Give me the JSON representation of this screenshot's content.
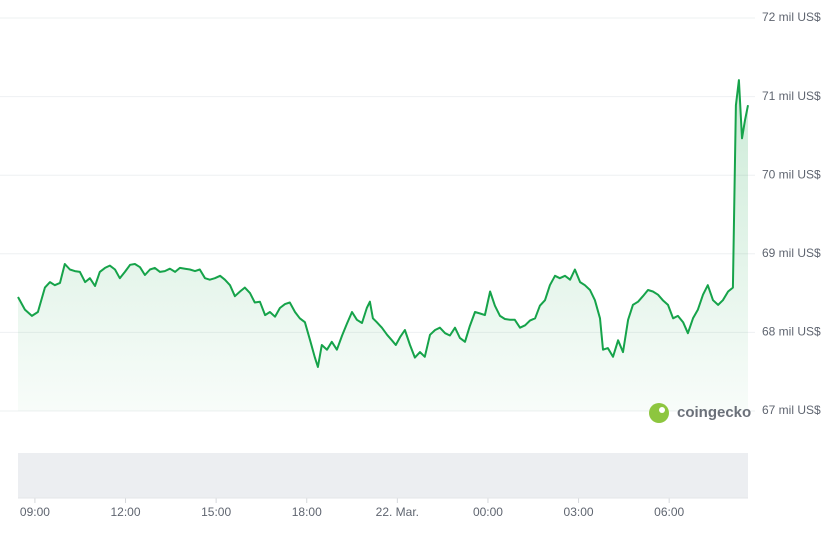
{
  "chart_data": {
    "type": "line",
    "color": "#16a34a",
    "grid": true,
    "watermark": "coingecko",
    "xlim": [
      -0.56,
      23.61
    ],
    "xticks": [
      {
        "value": 0,
        "label": "09:00"
      },
      {
        "value": 3,
        "label": "12:00"
      },
      {
        "value": 6,
        "label": "15:00"
      },
      {
        "value": 9,
        "label": "18:00"
      },
      {
        "value": 12,
        "label": "22. Mar."
      },
      {
        "value": 15,
        "label": "00:00"
      },
      {
        "value": 18,
        "label": "03:00"
      },
      {
        "value": 21,
        "label": "06:00"
      }
    ],
    "ylim": [
      67000,
      72000
    ],
    "yticks": [
      {
        "value": 67000,
        "label": "67 mil US$"
      },
      {
        "value": 68000,
        "label": "68 mil US$"
      },
      {
        "value": 69000,
        "label": "69 mil US$"
      },
      {
        "value": 70000,
        "label": "70 mil US$"
      },
      {
        "value": 71000,
        "label": "71 mil US$"
      },
      {
        "value": 72000,
        "label": "72 mil US$"
      }
    ],
    "x": [
      -0.56,
      -0.33,
      -0.1,
      0.1,
      0.33,
      0.5,
      0.66,
      0.83,
      0.99,
      1.16,
      1.32,
      1.49,
      1.66,
      1.82,
      1.99,
      2.15,
      2.32,
      2.48,
      2.65,
      2.81,
      2.98,
      3.15,
      3.31,
      3.48,
      3.64,
      3.81,
      3.97,
      4.14,
      4.3,
      4.47,
      4.64,
      4.8,
      4.97,
      5.13,
      5.3,
      5.46,
      5.63,
      5.79,
      5.96,
      6.13,
      6.29,
      6.46,
      6.62,
      6.79,
      6.95,
      7.12,
      7.28,
      7.45,
      7.62,
      7.78,
      7.95,
      8.11,
      8.28,
      8.44,
      8.61,
      8.77,
      8.94,
      9.11,
      9.27,
      9.37,
      9.5,
      9.67,
      9.83,
      10.0,
      10.17,
      10.33,
      10.5,
      10.66,
      10.83,
      10.99,
      11.09,
      11.19,
      11.32,
      11.49,
      11.66,
      11.82,
      11.95,
      12.09,
      12.25,
      12.42,
      12.58,
      12.75,
      12.91,
      13.08,
      13.25,
      13.41,
      13.58,
      13.74,
      13.91,
      14.07,
      14.24,
      14.4,
      14.57,
      14.74,
      14.9,
      15.07,
      15.23,
      15.4,
      15.56,
      15.73,
      15.89,
      16.06,
      16.23,
      16.39,
      16.56,
      16.72,
      16.89,
      17.05,
      17.22,
      17.38,
      17.55,
      17.72,
      17.88,
      18.05,
      18.21,
      18.38,
      18.54,
      18.71,
      18.81,
      18.97,
      19.14,
      19.31,
      19.47,
      19.64,
      19.8,
      19.97,
      20.13,
      20.3,
      20.46,
      20.63,
      20.79,
      20.96,
      21.13,
      21.29,
      21.46,
      21.62,
      21.79,
      21.95,
      22.12,
      22.28,
      22.45,
      22.62,
      22.78,
      22.95,
      23.11,
      23.21,
      23.31,
      23.41,
      23.51,
      23.61
    ],
    "values": [
      68450,
      68290,
      68210,
      68260,
      68570,
      68640,
      68600,
      68630,
      68870,
      68800,
      68780,
      68770,
      68640,
      68690,
      68590,
      68770,
      68820,
      68850,
      68800,
      68690,
      68770,
      68860,
      68870,
      68830,
      68730,
      68800,
      68820,
      68770,
      68780,
      68810,
      68770,
      68820,
      68810,
      68800,
      68780,
      68800,
      68690,
      68670,
      68690,
      68720,
      68670,
      68600,
      68460,
      68520,
      68570,
      68500,
      68380,
      68390,
      68220,
      68260,
      68200,
      68310,
      68360,
      68380,
      68260,
      68180,
      68130,
      67900,
      67680,
      67560,
      67840,
      67780,
      67880,
      67780,
      67960,
      68110,
      68260,
      68160,
      68120,
      68310,
      68390,
      68180,
      68130,
      68060,
      67970,
      67900,
      67840,
      67940,
      68030,
      67840,
      67680,
      67750,
      67690,
      67970,
      68030,
      68060,
      67990,
      67960,
      68060,
      67930,
      67880,
      68080,
      68260,
      68240,
      68220,
      68520,
      68340,
      68210,
      68170,
      68160,
      68160,
      68060,
      68090,
      68150,
      68180,
      68340,
      68410,
      68600,
      68720,
      68690,
      68720,
      68670,
      68800,
      68640,
      68600,
      68540,
      68410,
      68180,
      67780,
      67800,
      67690,
      67900,
      67750,
      68160,
      68350,
      68390,
      68460,
      68540,
      68520,
      68480,
      68410,
      68350,
      68180,
      68210,
      68130,
      67990,
      68180,
      68290,
      68480,
      68600,
      68410,
      68350,
      68410,
      68520,
      68570,
      70890,
      71210,
      70470,
      70700,
      70890
    ]
  }
}
